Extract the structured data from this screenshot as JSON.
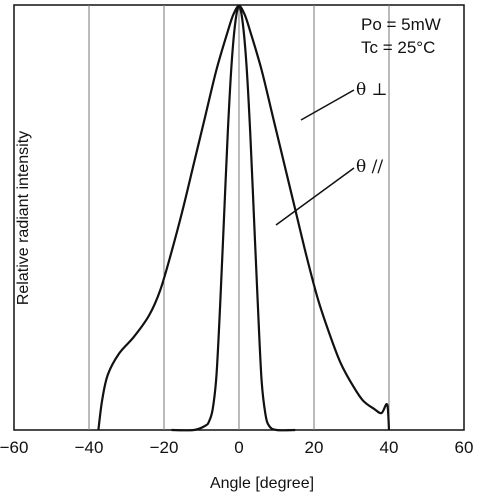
{
  "chart_data": {
    "type": "line",
    "title": "",
    "xlabel": "Angle [degree]",
    "ylabel": "Relative radiant intensity",
    "xlim": [
      -60,
      60
    ],
    "ylim": [
      0,
      1
    ],
    "x_ticks": [
      "−60",
      "−40",
      "−20",
      "0",
      "20",
      "40",
      "60"
    ],
    "grid": "vertical lines at -40, -20, 0, 20, 40",
    "annotations": [
      "Po = 5mW",
      "Tc = 25°C"
    ],
    "series": [
      {
        "name": "θ ⊥",
        "x": [
          -37.5,
          -36.5,
          -35,
          -32,
          -28,
          -24,
          -21,
          -18,
          -15,
          -12,
          -9,
          -6,
          -3,
          -1.5,
          0,
          1.5,
          3,
          6,
          9,
          12,
          15,
          18,
          21,
          24,
          27,
          30,
          33,
          36,
          38,
          39.5,
          40
        ],
        "y": [
          0.0,
          0.07,
          0.13,
          0.18,
          0.22,
          0.27,
          0.33,
          0.42,
          0.52,
          0.63,
          0.74,
          0.85,
          0.94,
          0.98,
          1.0,
          0.98,
          0.94,
          0.85,
          0.74,
          0.63,
          0.52,
          0.41,
          0.31,
          0.23,
          0.16,
          0.11,
          0.07,
          0.05,
          0.04,
          0.06,
          0.0
        ]
      },
      {
        "name": "θ //",
        "x": [
          -18,
          -12,
          -9,
          -8,
          -7,
          -6,
          -5,
          -4,
          -3,
          -2,
          -1,
          0,
          1,
          2,
          3,
          4,
          5,
          6,
          7,
          8,
          10,
          15
        ],
        "y": [
          0.0,
          0.0,
          0.01,
          0.02,
          0.05,
          0.13,
          0.3,
          0.5,
          0.7,
          0.86,
          0.96,
          1.0,
          0.96,
          0.86,
          0.7,
          0.5,
          0.3,
          0.12,
          0.04,
          0.01,
          0.0,
          0.0
        ]
      }
    ]
  }
}
